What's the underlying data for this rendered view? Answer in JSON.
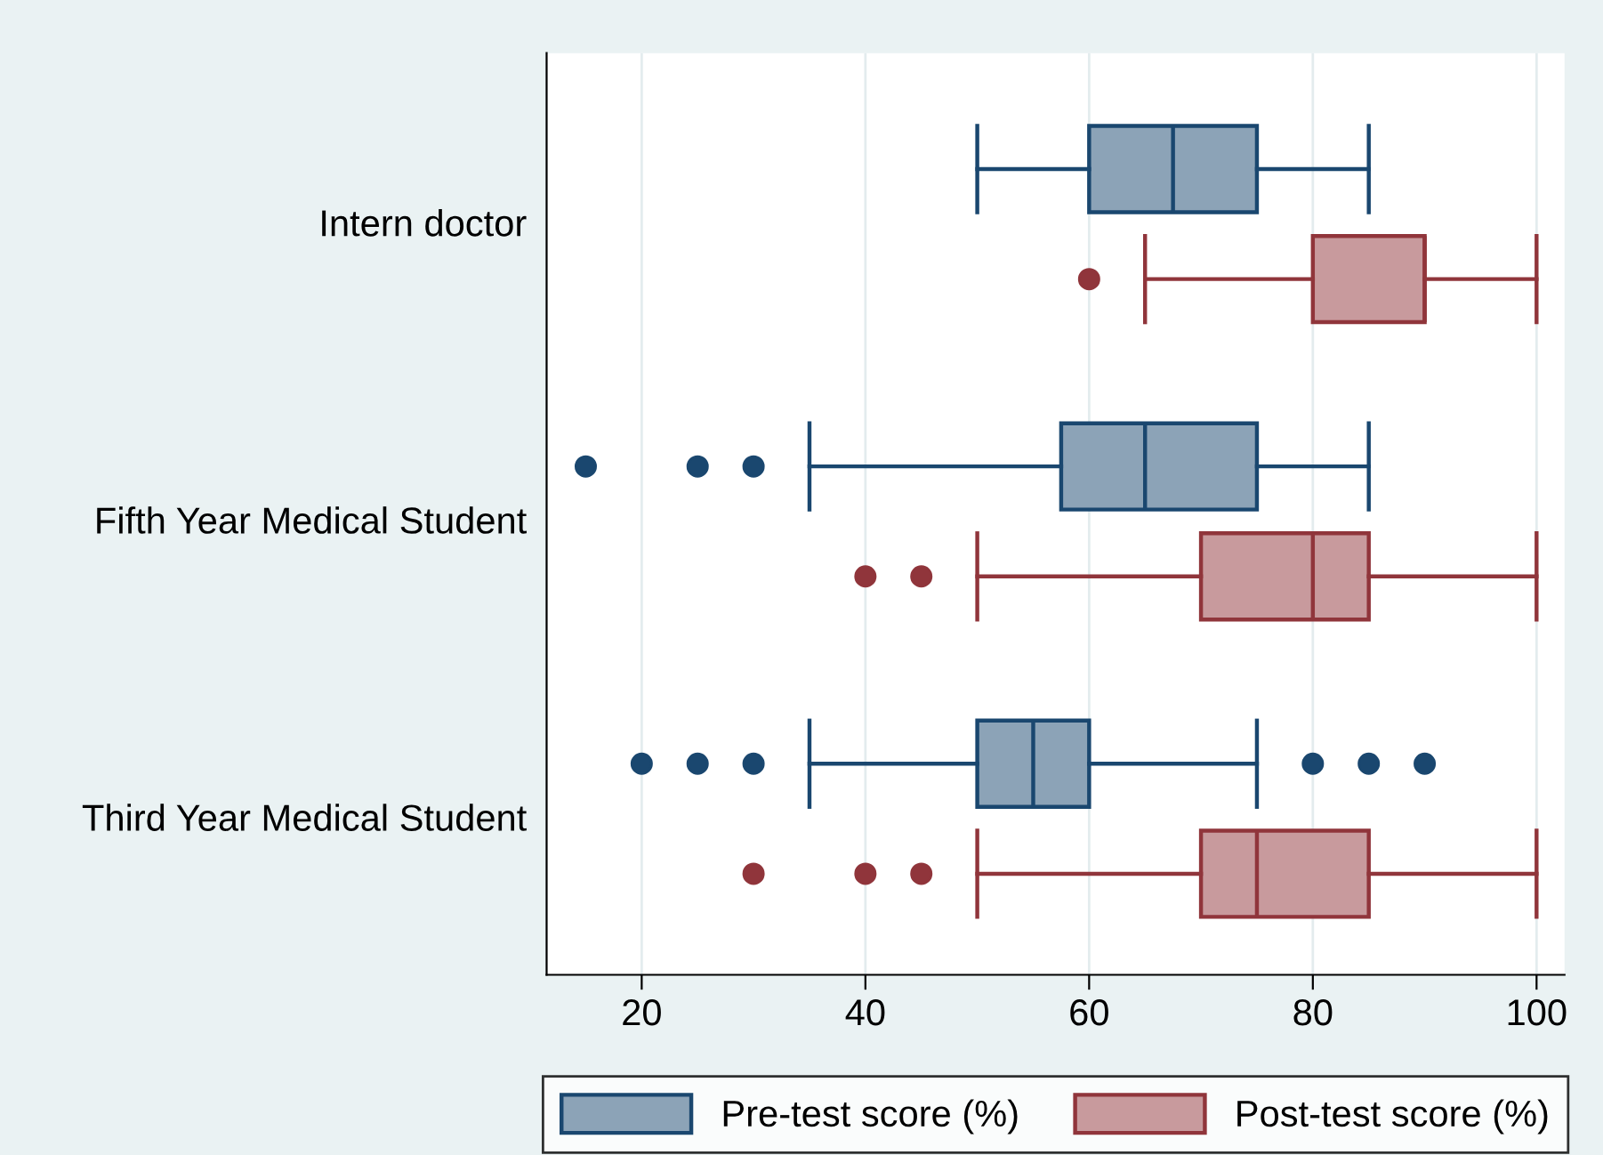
{
  "chart_data": {
    "type": "box",
    "orientation": "horizontal",
    "categories": [
      "Intern doctor",
      "Fifth Year Medical Student",
      "Third Year Medical Student"
    ],
    "series": [
      {
        "name": "Pre-test score (%)",
        "color": "#1a476f",
        "boxes": [
          {
            "low": 50,
            "q1": 60,
            "median": 67.5,
            "q3": 75,
            "high": 85
          },
          {
            "low": 35,
            "q1": 57.5,
            "median": 65,
            "q3": 75,
            "high": 85,
            "outliers": [
              15,
              25,
              30
            ]
          },
          {
            "low": 35,
            "q1": 50,
            "median": 55,
            "q3": 60,
            "high": 75,
            "outliers": [
              20,
              25,
              30,
              80,
              85,
              90
            ]
          }
        ]
      },
      {
        "name": "Post-test score (%)",
        "color": "#90353b",
        "boxes": [
          {
            "low": 65,
            "q1": 80,
            "median": 90,
            "q3": 90,
            "high": 100,
            "outliers": [
              60
            ]
          },
          {
            "low": 50,
            "q1": 70,
            "median": 80,
            "q3": 85,
            "high": 100,
            "outliers": [
              40,
              45
            ]
          },
          {
            "low": 50,
            "q1": 70,
            "median": 75,
            "q3": 85,
            "high": 100,
            "outliers": [
              30,
              40,
              45
            ]
          }
        ]
      }
    ],
    "xlim": [
      11.5,
      102.5
    ],
    "xticks": [
      20,
      40,
      60,
      80,
      100
    ],
    "grid": "x",
    "legend": "bottom"
  }
}
